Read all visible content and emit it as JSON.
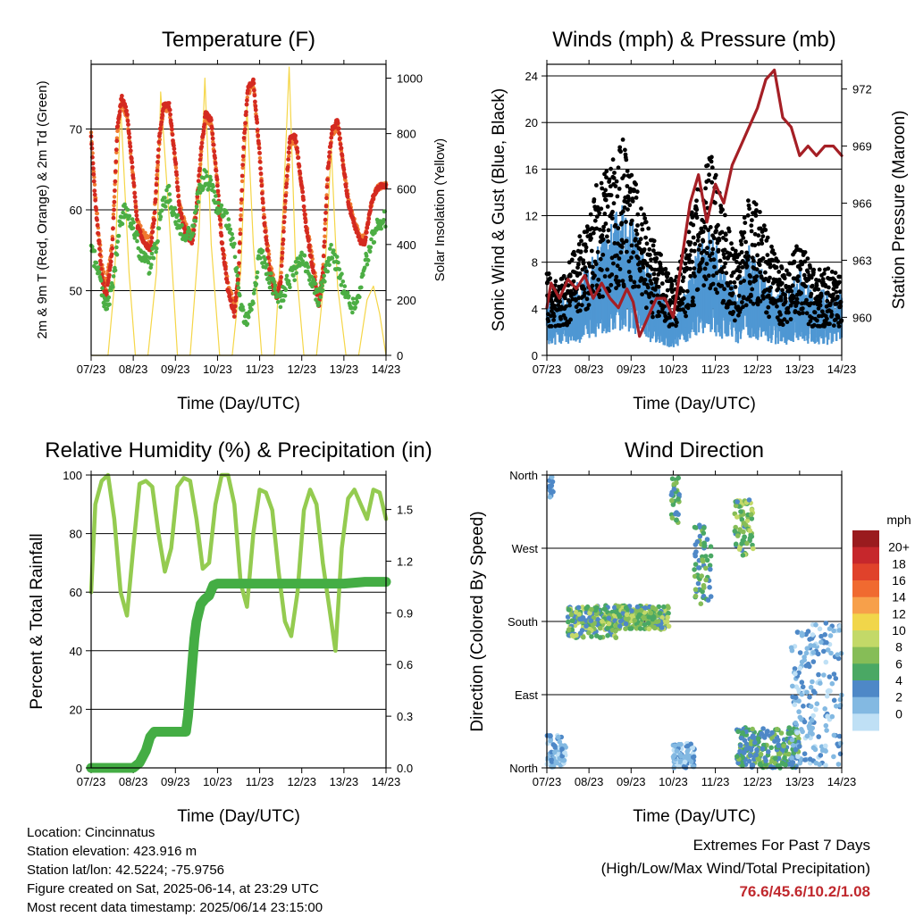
{
  "footer": {
    "location": "Location: Cincinnatus",
    "elevation": "Station elevation: 423.916 m",
    "latlon": "Station lat/lon: 42.5224; -75.9756",
    "created": "Figure created on Sat, 2025-06-14, at 23:29 UTC",
    "recent": "Most recent data timestamp: 2025/06/14 23:15:00",
    "extremes_title": "Extremes For Past 7 Days",
    "extremes_sub": "(High/Low/Max Wind/Total Precipitation)",
    "extremes_values": "76.6/45.6/10.2/1.08"
  },
  "colors": {
    "temp2m": "#d42a20",
    "temp9m": "#f07a30",
    "dewpoint": "#4cae44",
    "solar": "#f5d648",
    "gust": "#000000",
    "wind": "#4f97d3",
    "pressure": "#a51f25",
    "rh": "#94cb50",
    "precip": "#44ad44",
    "extremes": "#c0282d"
  },
  "chart_data": [
    {
      "type": "line",
      "title": "Temperature (F)",
      "xlabel": "Time (Day/UTC)",
      "ylabel": "2m & 9m T (Red, Orange) & 2m Td (Green)",
      "y2label": "Solar Insolation (Yellow)",
      "x_ticks": [
        "07/23",
        "08/23",
        "09/23",
        "10/23",
        "11/23",
        "12/23",
        "13/23",
        "14/23"
      ],
      "xlim": [
        0,
        7
      ],
      "ylim": [
        42,
        78
      ],
      "y_ticks": [
        50,
        60,
        70
      ],
      "y2lim": [
        0,
        1050
      ],
      "y2_ticks": [
        0,
        200,
        400,
        600,
        800,
        1000
      ],
      "grid": "horizontal",
      "series": [
        {
          "name": "2m T",
          "axis": "left",
          "x": [
            0,
            0.1,
            0.25,
            0.35,
            0.5,
            0.62,
            0.72,
            0.85,
            1.0,
            1.1,
            1.25,
            1.4,
            1.5,
            1.62,
            1.72,
            1.85,
            2.0,
            2.1,
            2.25,
            2.4,
            2.5,
            2.62,
            2.72,
            2.85,
            3.0,
            3.1,
            3.25,
            3.4,
            3.5,
            3.62,
            3.72,
            3.85,
            4.0,
            4.1,
            4.25,
            4.4,
            4.5,
            4.62,
            4.72,
            4.85,
            5.0,
            5.1,
            5.25,
            5.4,
            5.5,
            5.62,
            5.72,
            5.85,
            6.0,
            6.1,
            6.25,
            6.4,
            6.5,
            6.62,
            6.72,
            6.85,
            7.0
          ],
          "y": [
            69,
            61,
            52,
            49,
            55,
            70,
            74,
            72,
            64,
            58,
            56,
            55,
            59,
            69,
            73,
            73,
            66,
            60,
            57,
            56,
            60,
            68,
            72,
            71,
            63,
            56,
            50,
            47,
            52,
            68,
            75,
            76,
            67,
            59,
            52,
            49,
            51,
            62,
            69,
            69,
            63,
            58,
            53,
            48,
            52,
            65,
            70,
            71,
            65,
            61,
            58,
            56,
            56,
            60,
            62,
            63,
            63
          ]
        },
        {
          "name": "9m T",
          "axis": "left",
          "x": [
            0,
            0.1,
            0.25,
            0.35,
            0.5,
            0.62,
            0.72,
            0.85,
            1.0,
            1.1,
            1.25,
            1.4,
            1.5,
            1.62,
            1.72,
            1.85,
            2.0,
            2.1,
            2.25,
            2.4,
            2.5,
            2.62,
            2.72,
            2.85,
            3.0,
            3.1,
            3.25,
            3.4,
            3.5,
            3.62,
            3.72,
            3.85,
            4.0,
            4.1,
            4.25,
            4.4,
            4.5,
            4.62,
            4.72,
            4.85,
            5.0,
            5.1,
            5.25,
            5.4,
            5.5,
            5.62,
            5.72,
            5.85,
            6.0,
            6.1,
            6.25,
            6.4,
            6.5,
            6.62,
            6.72,
            6.85,
            7.0
          ],
          "y": [
            69.5,
            61.5,
            53.5,
            50.5,
            56,
            69.5,
            73.5,
            71.5,
            64,
            58.5,
            57,
            56,
            59.5,
            68.5,
            72.5,
            72.5,
            66,
            60.5,
            58,
            57,
            60.5,
            67.5,
            71.5,
            70.5,
            63,
            56.5,
            51,
            48,
            52.5,
            67.5,
            74.5,
            75.5,
            67,
            59.5,
            53,
            50,
            51.5,
            61.5,
            68.5,
            68.5,
            63,
            58.5,
            54,
            49,
            52.5,
            64.5,
            69.5,
            70.5,
            65,
            61.5,
            58.5,
            56.5,
            56.5,
            60,
            62,
            63,
            63
          ]
        },
        {
          "name": "2m Td",
          "axis": "left",
          "x": [
            0,
            0.15,
            0.3,
            0.4,
            0.55,
            0.7,
            0.85,
            1.0,
            1.2,
            1.4,
            1.55,
            1.7,
            1.85,
            2.0,
            2.2,
            2.4,
            2.55,
            2.7,
            2.85,
            3.0,
            3.2,
            3.4,
            3.55,
            3.7,
            3.85,
            4.0,
            4.2,
            4.35,
            4.5,
            4.65,
            4.8,
            5.0,
            5.2,
            5.4,
            5.55,
            5.7,
            5.85,
            6.0,
            6.2,
            6.35,
            6.5,
            6.65,
            6.8,
            7.0
          ],
          "y": [
            55,
            53,
            49,
            48,
            52,
            59,
            60,
            58,
            54,
            53,
            56,
            61,
            62,
            59,
            57,
            57,
            62,
            64,
            63,
            60,
            59,
            55,
            48,
            46,
            49,
            55,
            52,
            50,
            49,
            51,
            52,
            54,
            52,
            49,
            52,
            55,
            53,
            50,
            48,
            49,
            53,
            56,
            58,
            59
          ]
        },
        {
          "name": "Solar Insolation",
          "axis": "right",
          "x": [
            0,
            0.4,
            0.55,
            0.7,
            0.9,
            1.05,
            1.35,
            1.55,
            1.65,
            1.85,
            2.05,
            2.35,
            2.55,
            2.7,
            2.85,
            3.05,
            3.35,
            3.55,
            3.7,
            3.85,
            4.05,
            4.35,
            4.55,
            4.7,
            4.85,
            5.05,
            5.35,
            5.55,
            5.7,
            5.85,
            6.05,
            6.35,
            6.55,
            6.7,
            6.85,
            7.0
          ],
          "y": [
            0,
            0,
            250,
            900,
            300,
            0,
            0,
            300,
            950,
            500,
            0,
            0,
            400,
            1000,
            400,
            0,
            0,
            300,
            900,
            400,
            0,
            0,
            500,
            1040,
            350,
            0,
            0,
            300,
            750,
            250,
            0,
            0,
            200,
            250,
            150,
            0
          ]
        }
      ]
    },
    {
      "type": "line",
      "title": "Winds (mph) & Pressure (mb)",
      "xlabel": "Time (Day/UTC)",
      "ylabel": "Sonic Wind & Gust (Blue, Black)",
      "y2label": "Station Pressure (Maroon)",
      "x_ticks": [
        "07/23",
        "08/23",
        "09/23",
        "10/23",
        "11/23",
        "12/23",
        "13/23",
        "14/23"
      ],
      "xlim": [
        0,
        7
      ],
      "ylim": [
        0,
        25
      ],
      "y_ticks": [
        0,
        4,
        8,
        12,
        16,
        20,
        24
      ],
      "y2lim": [
        958,
        973.3
      ],
      "y2_ticks": [
        960,
        963,
        966,
        969,
        972
      ],
      "grid": "horizontal",
      "series": [
        {
          "name": "Sonic Wind",
          "axis": "left",
          "x": [
            0,
            0.3,
            0.6,
            0.9,
            1.2,
            1.5,
            1.8,
            2.1,
            2.4,
            2.7,
            3.0,
            3.3,
            3.6,
            3.9,
            4.2,
            4.5,
            4.8,
            5.1,
            5.4,
            5.7,
            6.0,
            6.3,
            6.6,
            6.9,
            7.0
          ],
          "y": [
            3,
            2.5,
            3,
            4,
            5,
            6,
            7,
            6,
            4,
            3,
            2,
            3,
            5,
            6,
            4,
            3,
            5,
            4,
            3,
            3,
            4,
            3,
            3,
            3,
            3
          ]
        },
        {
          "name": "Gust",
          "axis": "left",
          "x": [
            0,
            0.3,
            0.6,
            0.9,
            1.2,
            1.5,
            1.8,
            2.1,
            2.4,
            2.7,
            3.0,
            3.3,
            3.6,
            3.9,
            4.2,
            4.5,
            4.8,
            5.1,
            5.4,
            5.7,
            6.0,
            6.3,
            6.6,
            6.9,
            7.0
          ],
          "y": [
            6,
            5,
            7,
            9,
            12,
            13,
            15,
            12,
            9,
            7,
            5,
            8,
            12,
            14,
            10,
            7,
            11,
            10,
            7,
            6,
            8,
            6,
            6,
            6,
            5
          ]
        },
        {
          "name": "Station Pressure",
          "axis": "right",
          "x": [
            0,
            0.1,
            0.3,
            0.5,
            0.7,
            0.9,
            1.1,
            1.3,
            1.5,
            1.7,
            1.9,
            2.05,
            2.2,
            2.4,
            2.6,
            2.8,
            3.0,
            3.2,
            3.4,
            3.6,
            3.8,
            4.0,
            4.2,
            4.4,
            4.6,
            4.8,
            5.0,
            5.2,
            5.4,
            5.6,
            5.8,
            6.0,
            6.2,
            6.4,
            6.6,
            6.8,
            7.0
          ],
          "y": [
            960.5,
            961.8,
            961,
            962,
            961.5,
            962.2,
            961,
            961.8,
            961,
            960.5,
            961.5,
            960.8,
            959,
            960,
            961,
            961,
            960,
            963,
            966,
            967.5,
            965,
            967,
            966,
            968,
            969,
            970,
            971,
            972.5,
            973,
            970.5,
            970,
            968.5,
            969,
            968.5,
            969,
            969,
            968.5
          ]
        }
      ]
    },
    {
      "type": "line",
      "title": "Relative Humidity (%) & Precipitation (in)",
      "xlabel": "Time (Day/UTC)",
      "ylabel": "Percent & Total Rainfall",
      "x_ticks": [
        "07/23",
        "08/23",
        "09/23",
        "10/23",
        "11/23",
        "12/23",
        "13/23",
        "14/23"
      ],
      "xlim": [
        0,
        7
      ],
      "ylim": [
        0,
        100
      ],
      "y_ticks": [
        0,
        20,
        40,
        60,
        80,
        100
      ],
      "y2lim": [
        0,
        1.7
      ],
      "y2_ticks": [
        "0.0",
        "0.3",
        "0.6",
        "0.9",
        "1.2",
        "1.5"
      ],
      "grid": "horizontal",
      "series": [
        {
          "name": "Relative Humidity",
          "axis": "left",
          "x": [
            0,
            0.1,
            0.25,
            0.4,
            0.55,
            0.7,
            0.85,
            1.0,
            1.15,
            1.3,
            1.45,
            1.6,
            1.75,
            1.9,
            2.05,
            2.2,
            2.35,
            2.5,
            2.65,
            2.8,
            2.95,
            3.1,
            3.25,
            3.4,
            3.55,
            3.7,
            3.85,
            4.0,
            4.15,
            4.3,
            4.45,
            4.6,
            4.75,
            4.9,
            5.05,
            5.2,
            5.35,
            5.5,
            5.65,
            5.8,
            5.95,
            6.1,
            6.25,
            6.4,
            6.55,
            6.7,
            6.85,
            7.0
          ],
          "y": [
            60,
            90,
            98,
            100,
            85,
            60,
            52,
            75,
            97,
            98,
            96,
            80,
            67,
            75,
            96,
            99,
            98,
            85,
            68,
            70,
            90,
            100,
            100,
            90,
            63,
            55,
            80,
            95,
            94,
            88,
            67,
            50,
            45,
            60,
            88,
            95,
            90,
            70,
            55,
            40,
            75,
            92,
            95,
            90,
            85,
            95,
            94,
            85
          ]
        },
        {
          "name": "Total Precipitation",
          "axis": "right",
          "x": [
            0,
            0.5,
            1.0,
            1.15,
            1.3,
            1.4,
            1.5,
            1.6,
            2.25,
            2.3,
            2.35,
            2.4,
            2.45,
            2.5,
            2.6,
            2.7,
            2.8,
            2.9,
            3.0,
            3.5,
            4.0,
            4.5,
            5.0,
            5.5,
            6.0,
            6.5,
            7.0
          ],
          "y": [
            0,
            0,
            0,
            0.03,
            0.1,
            0.18,
            0.21,
            0.21,
            0.21,
            0.3,
            0.45,
            0.6,
            0.75,
            0.85,
            0.95,
            0.98,
            1.0,
            1.06,
            1.07,
            1.07,
            1.07,
            1.07,
            1.07,
            1.07,
            1.07,
            1.08,
            1.08
          ]
        }
      ]
    },
    {
      "type": "scatter",
      "title": "Wind Direction",
      "xlabel": "Time (Day/UTC)",
      "ylabel": "Direction (Colored By Speed)",
      "x_ticks": [
        "07/23",
        "08/23",
        "09/23",
        "10/23",
        "11/23",
        "12/23",
        "13/23",
        "14/23"
      ],
      "xlim": [
        0,
        7
      ],
      "y_categories": [
        "North",
        "East",
        "South",
        "West",
        "North"
      ],
      "ylim": [
        0,
        360
      ],
      "grid": "horizontal",
      "legend": "right",
      "colorbar": {
        "title": "mph",
        "labels": [
          "20+",
          "18",
          "16",
          "14",
          "12",
          "10",
          "8",
          "6",
          "4",
          "2",
          "0"
        ],
        "colors": [
          "#9a1b1e",
          "#c6272c",
          "#e0422b",
          "#f06a30",
          "#f7a04a",
          "#f1d64a",
          "#c3d968",
          "#86bd57",
          "#4aa864",
          "#4e88c7",
          "#83b9e2",
          "#bfe0f5"
        ]
      },
      "clusters": [
        {
          "x": [
            0,
            0.45
          ],
          "dir": [
            0,
            40
          ],
          "speed": [
            0,
            4
          ]
        },
        {
          "x": [
            0.05,
            0.15
          ],
          "dir": [
            330,
            360
          ],
          "speed": [
            2,
            4
          ]
        },
        {
          "x": [
            0.5,
            1.7
          ],
          "dir": [
            160,
            200
          ],
          "speed": [
            3,
            10
          ]
        },
        {
          "x": [
            1.7,
            2.9
          ],
          "dir": [
            170,
            200
          ],
          "speed": [
            4,
            10
          ]
        },
        {
          "x": [
            2.95,
            3.15
          ],
          "dir": [
            300,
            360
          ],
          "speed": [
            4,
            8
          ]
        },
        {
          "x": [
            3.0,
            3.5
          ],
          "dir": [
            0,
            30
          ],
          "speed": [
            0,
            4
          ]
        },
        {
          "x": [
            3.5,
            3.9
          ],
          "dir": [
            200,
            300
          ],
          "speed": [
            4,
            8
          ]
        },
        {
          "x": [
            4.45,
            4.9
          ],
          "dir": [
            260,
            330
          ],
          "speed": [
            4,
            10
          ]
        },
        {
          "x": [
            4.5,
            6.0
          ],
          "dir": [
            0,
            50
          ],
          "speed": [
            3,
            8
          ]
        },
        {
          "x": [
            5.8,
            7.0
          ],
          "dir": [
            0,
            180
          ],
          "speed": [
            0,
            5
          ]
        }
      ]
    }
  ]
}
